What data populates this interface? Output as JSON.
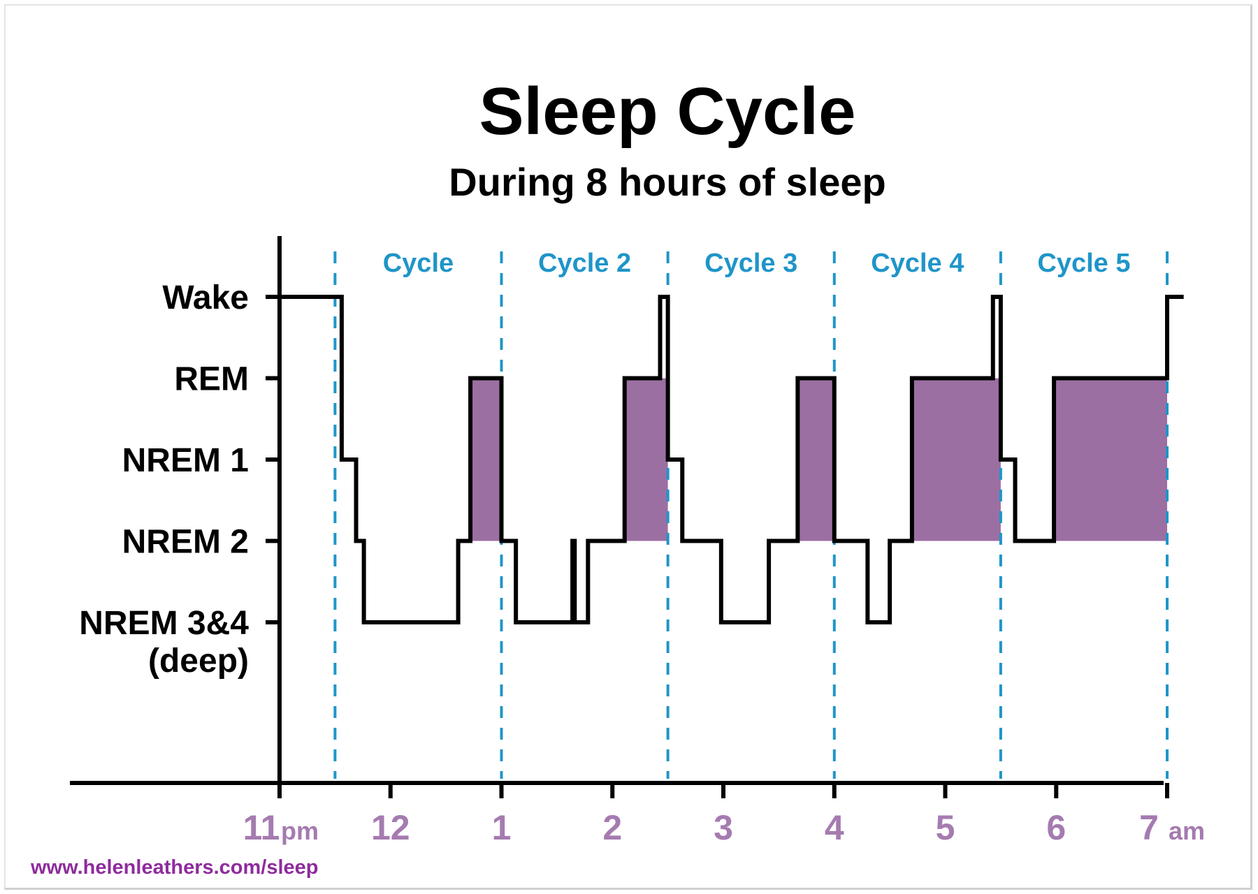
{
  "colors": {
    "rem_fill": "#9c6fa3",
    "cycle_line": "#1f95c8",
    "cycle_label": "#1f95c8",
    "x_tick_label": "#a57bb0",
    "footer": "#8e2c9c"
  },
  "chart_data": {
    "type": "line",
    "step": true,
    "title": "Sleep Cycle",
    "subtitle": "During 8 hours of sleep",
    "y_levels": [
      "Wake",
      "REM",
      "NREM 1",
      "NREM 2",
      "NREM 3&4"
    ],
    "y_labels": [
      {
        "level": 0,
        "lines": [
          "Wake"
        ]
      },
      {
        "level": 1,
        "lines": [
          "REM"
        ]
      },
      {
        "level": 2,
        "lines": [
          "NREM 1"
        ]
      },
      {
        "level": 3,
        "lines": [
          "NREM 2"
        ]
      },
      {
        "level": 4,
        "lines": [
          "NREM 3&4",
          "(deep)"
        ]
      }
    ],
    "x_range_hours": [
      0,
      8
    ],
    "x_ticks": [
      {
        "hour": 0,
        "label": "11",
        "suffix": "pm"
      },
      {
        "hour": 1,
        "label": "12",
        "suffix": ""
      },
      {
        "hour": 2,
        "label": "1",
        "suffix": ""
      },
      {
        "hour": 3,
        "label": "2",
        "suffix": ""
      },
      {
        "hour": 4,
        "label": "3",
        "suffix": ""
      },
      {
        "hour": 5,
        "label": "4",
        "suffix": ""
      },
      {
        "hour": 6,
        "label": "5",
        "suffix": ""
      },
      {
        "hour": 7,
        "label": "6",
        "suffix": ""
      },
      {
        "hour": 8,
        "label": "7",
        "suffix": "am"
      }
    ],
    "cycle_boundaries": [
      0.5,
      2.0,
      3.5,
      5.0,
      6.5,
      8.0
    ],
    "cycles": [
      {
        "label": "Cycle",
        "start": 0.5,
        "end": 2.0
      },
      {
        "label": "Cycle 2",
        "start": 2.0,
        "end": 3.5
      },
      {
        "label": "Cycle 3",
        "start": 3.5,
        "end": 5.0
      },
      {
        "label": "Cycle 4",
        "start": 5.0,
        "end": 6.5
      },
      {
        "label": "Cycle 5",
        "start": 6.5,
        "end": 8.0
      }
    ],
    "hypnogram": [
      {
        "start": 0.0,
        "end": 0.56,
        "stage": "Wake"
      },
      {
        "start": 0.56,
        "end": 0.69,
        "stage": "NREM 1"
      },
      {
        "start": 0.69,
        "end": 0.76,
        "stage": "NREM 2"
      },
      {
        "start": 0.76,
        "end": 1.61,
        "stage": "NREM 3&4"
      },
      {
        "start": 1.61,
        "end": 1.72,
        "stage": "NREM 2"
      },
      {
        "start": 1.72,
        "end": 2.0,
        "stage": "REM"
      },
      {
        "start": 2.0,
        "end": 2.13,
        "stage": "NREM 2"
      },
      {
        "start": 2.13,
        "end": 2.64,
        "stage": "NREM 3&4"
      },
      {
        "start": 2.64,
        "end": 2.66,
        "stage": "NREM 2"
      },
      {
        "start": 2.66,
        "end": 2.78,
        "stage": "NREM 3&4"
      },
      {
        "start": 2.78,
        "end": 3.11,
        "stage": "NREM 2"
      },
      {
        "start": 3.11,
        "end": 3.43,
        "stage": "REM"
      },
      {
        "start": 3.43,
        "end": 3.5,
        "stage": "Wake"
      },
      {
        "start": 3.5,
        "end": 3.63,
        "stage": "NREM 1"
      },
      {
        "start": 3.63,
        "end": 3.98,
        "stage": "NREM 2"
      },
      {
        "start": 3.98,
        "end": 4.41,
        "stage": "NREM 3&4"
      },
      {
        "start": 4.41,
        "end": 4.67,
        "stage": "NREM 2"
      },
      {
        "start": 4.67,
        "end": 5.0,
        "stage": "REM"
      },
      {
        "start": 5.0,
        "end": 5.3,
        "stage": "NREM 2"
      },
      {
        "start": 5.3,
        "end": 5.5,
        "stage": "NREM 3&4"
      },
      {
        "start": 5.5,
        "end": 5.7,
        "stage": "NREM 2"
      },
      {
        "start": 5.7,
        "end": 6.43,
        "stage": "REM"
      },
      {
        "start": 6.43,
        "end": 6.5,
        "stage": "Wake"
      },
      {
        "start": 6.5,
        "end": 6.63,
        "stage": "NREM 1"
      },
      {
        "start": 6.63,
        "end": 6.98,
        "stage": "NREM 2"
      },
      {
        "start": 6.98,
        "end": 8.0,
        "stage": "REM"
      },
      {
        "start": 8.0,
        "end": 8.13,
        "stage": "Wake"
      }
    ],
    "rem_shading": [
      [
        1.72,
        2.0
      ],
      [
        3.11,
        3.5
      ],
      [
        4.67,
        5.0
      ],
      [
        5.7,
        6.5
      ],
      [
        6.98,
        8.0
      ]
    ],
    "rem_shading_to": "NREM 2"
  },
  "footer": {
    "text": "www.helenleathers.com/sleep"
  }
}
